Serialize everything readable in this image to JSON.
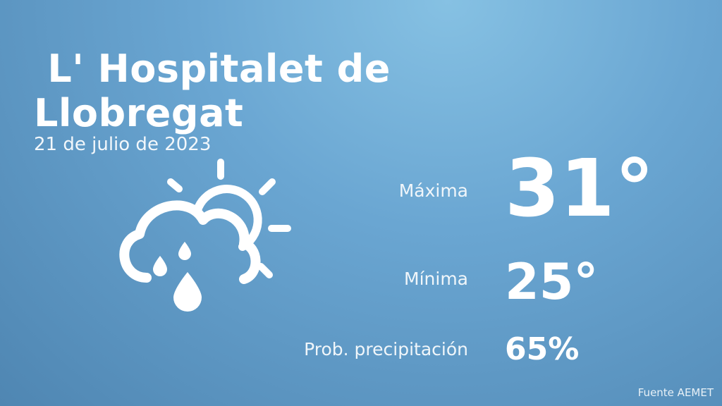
{
  "location": {
    "name": " L' Hospitalet de Llobregat"
  },
  "date": "21 de julio de 2023",
  "icon": "partly-cloudy-rain-icon",
  "stats": {
    "max_label": "Máxima",
    "max_value": "31°",
    "min_label": "Mínima",
    "min_value": "25°",
    "prob_label": "Prob. precipitación",
    "prob_value": "65%"
  },
  "source": "Fuente AEMET",
  "colors": {
    "background_top": "#86c1e3",
    "background_bottom": "#4f86b2",
    "foreground": "#ffffff"
  }
}
